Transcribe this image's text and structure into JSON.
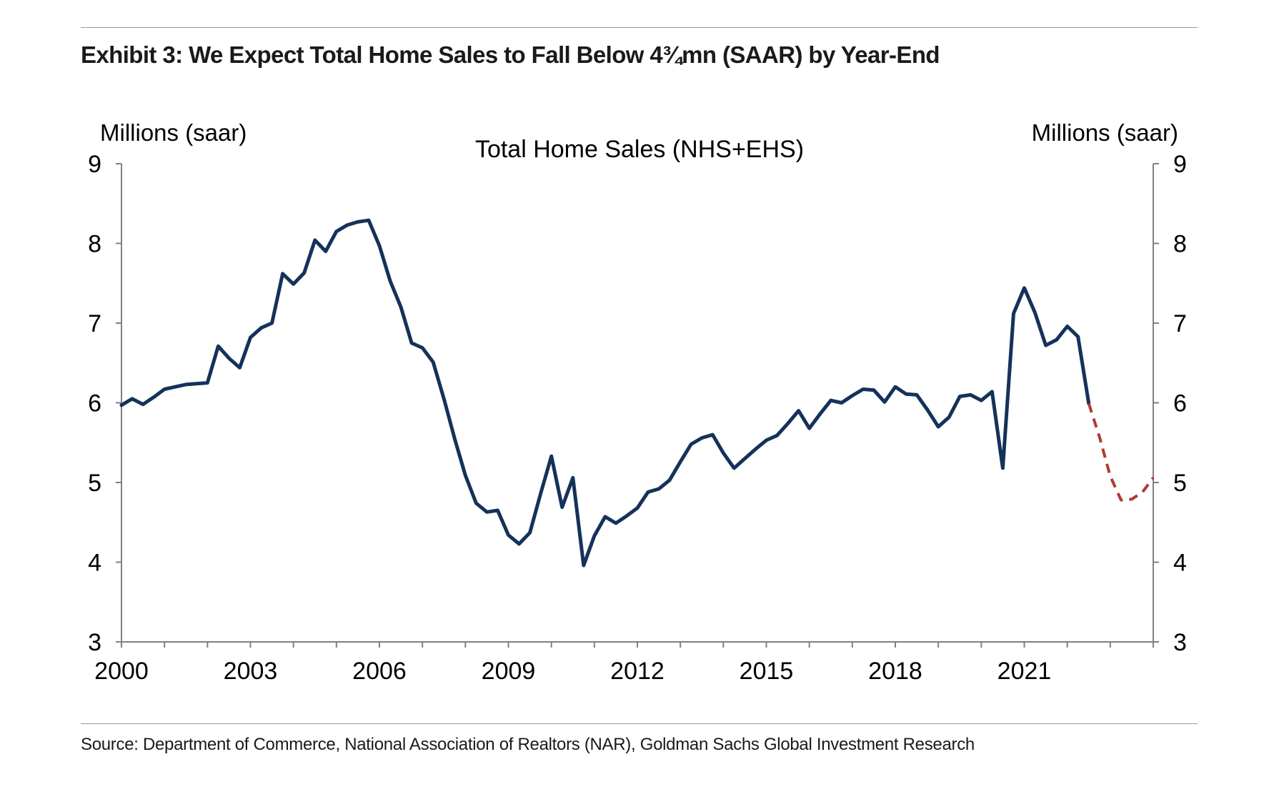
{
  "header": {
    "title": "Exhibit 3: We Expect Total Home Sales to Fall Below 4¾mn (SAAR) by Year-End"
  },
  "footer": {
    "source": "Source: Department of Commerce, National Association of Realtors (NAR), Goldman Sachs Global Investment Research"
  },
  "chart_data": {
    "type": "line",
    "title": "Total Home Sales (NHS+EHS)",
    "ylabel_left": "Millions (saar)",
    "ylabel_right": "Millions (saar)",
    "xlabel": "",
    "xlim": [
      2000,
      2024
    ],
    "ylim": [
      3,
      9
    ],
    "x_tick_labels": [
      "2000",
      "2003",
      "2006",
      "2009",
      "2012",
      "2015",
      "2018",
      "2021"
    ],
    "x_tick_values": [
      2000,
      2003,
      2006,
      2009,
      2012,
      2015,
      2018,
      2021
    ],
    "y_tick_labels": [
      "3",
      "4",
      "5",
      "6",
      "7",
      "8",
      "9"
    ],
    "y_tick_values": [
      3,
      4,
      5,
      6,
      7,
      8,
      9
    ],
    "grid": false,
    "legend": "none",
    "colors": {
      "actual": "#14325a",
      "forecast": "#b03a32",
      "axis": "#808080"
    },
    "series": [
      {
        "style": "solid",
        "points": [
          [
            2000.0,
            5.97
          ],
          [
            2000.25,
            6.05
          ],
          [
            2000.5,
            5.98
          ],
          [
            2000.75,
            6.07
          ],
          [
            2001.0,
            6.17
          ],
          [
            2001.25,
            6.2
          ],
          [
            2001.5,
            6.23
          ],
          [
            2001.75,
            6.24
          ],
          [
            2002.0,
            6.25
          ],
          [
            2002.25,
            6.71
          ],
          [
            2002.5,
            6.56
          ],
          [
            2002.75,
            6.44
          ],
          [
            2003.0,
            6.82
          ],
          [
            2003.25,
            6.94
          ],
          [
            2003.5,
            7.0
          ],
          [
            2003.75,
            7.62
          ],
          [
            2004.0,
            7.49
          ],
          [
            2004.25,
            7.63
          ],
          [
            2004.5,
            8.04
          ],
          [
            2004.75,
            7.9
          ],
          [
            2005.0,
            8.15
          ],
          [
            2005.25,
            8.23
          ],
          [
            2005.5,
            8.27
          ],
          [
            2005.75,
            8.29
          ],
          [
            2006.0,
            7.97
          ],
          [
            2006.25,
            7.53
          ],
          [
            2006.5,
            7.2
          ],
          [
            2006.75,
            6.75
          ],
          [
            2007.0,
            6.69
          ],
          [
            2007.25,
            6.51
          ],
          [
            2007.5,
            6.05
          ],
          [
            2007.75,
            5.55
          ],
          [
            2008.0,
            5.09
          ],
          [
            2008.25,
            4.74
          ],
          [
            2008.5,
            4.63
          ],
          [
            2008.75,
            4.65
          ],
          [
            2009.0,
            4.34
          ],
          [
            2009.25,
            4.23
          ],
          [
            2009.5,
            4.37
          ],
          [
            2009.75,
            4.86
          ],
          [
            2010.0,
            5.33
          ],
          [
            2010.25,
            4.69
          ],
          [
            2010.5,
            5.06
          ],
          [
            2010.75,
            3.96
          ],
          [
            2011.0,
            4.33
          ],
          [
            2011.25,
            4.57
          ],
          [
            2011.5,
            4.49
          ],
          [
            2011.75,
            4.58
          ],
          [
            2012.0,
            4.68
          ],
          [
            2012.25,
            4.88
          ],
          [
            2012.5,
            4.92
          ],
          [
            2012.75,
            5.03
          ],
          [
            2013.0,
            5.26
          ],
          [
            2013.25,
            5.48
          ],
          [
            2013.5,
            5.56
          ],
          [
            2013.75,
            5.6
          ],
          [
            2014.0,
            5.37
          ],
          [
            2014.25,
            5.18
          ],
          [
            2014.5,
            5.3
          ],
          [
            2014.75,
            5.42
          ],
          [
            2015.0,
            5.53
          ],
          [
            2015.25,
            5.59
          ],
          [
            2015.5,
            5.74
          ],
          [
            2015.75,
            5.9
          ],
          [
            2016.0,
            5.68
          ],
          [
            2016.25,
            5.86
          ],
          [
            2016.5,
            6.03
          ],
          [
            2016.75,
            6.0
          ],
          [
            2017.0,
            6.09
          ],
          [
            2017.25,
            6.17
          ],
          [
            2017.5,
            6.16
          ],
          [
            2017.75,
            6.01
          ],
          [
            2018.0,
            6.2
          ],
          [
            2018.25,
            6.11
          ],
          [
            2018.5,
            6.1
          ],
          [
            2018.75,
            5.91
          ],
          [
            2019.0,
            5.7
          ],
          [
            2019.25,
            5.82
          ],
          [
            2019.5,
            6.08
          ],
          [
            2019.75,
            6.1
          ],
          [
            2020.0,
            6.03
          ],
          [
            2020.25,
            6.14
          ],
          [
            2020.5,
            5.18
          ],
          [
            2020.75,
            7.12
          ],
          [
            2021.0,
            7.44
          ],
          [
            2021.25,
            7.13
          ],
          [
            2021.5,
            6.72
          ],
          [
            2021.75,
            6.79
          ],
          [
            2022.0,
            6.96
          ],
          [
            2022.25,
            6.83
          ],
          [
            2022.5,
            5.99
          ]
        ]
      },
      {
        "style": "dashed",
        "points": [
          [
            2022.5,
            5.99
          ],
          [
            2022.75,
            5.57
          ],
          [
            2023.0,
            5.08
          ],
          [
            2023.25,
            4.78
          ],
          [
            2023.5,
            4.79
          ],
          [
            2023.75,
            4.88
          ],
          [
            2024.0,
            5.06
          ]
        ]
      }
    ]
  }
}
